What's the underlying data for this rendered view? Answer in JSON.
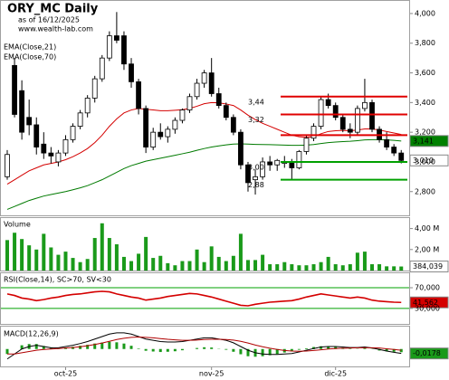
{
  "chart_data": [
    {
      "type": "candlestick",
      "title": "ORY_MC Daily",
      "subtitle": "as of 16/12/2025",
      "source": "www.wealth-lab.com",
      "open": [
        2900,
        3650,
        3480,
        3300,
        3250,
        3120,
        3060,
        3000,
        3060,
        3150,
        3240,
        3330,
        3430,
        3560,
        3700,
        3850,
        3850,
        3660,
        3540,
        3360,
        3100,
        3200,
        3170,
        3220,
        3280,
        3350,
        3440,
        3530,
        3600,
        3460,
        3380,
        3300,
        3200,
        2980,
        2880,
        2900,
        3000,
        2980,
        2990,
        3000,
        2960,
        3070,
        3160,
        3240,
        3420,
        3380,
        3300,
        3220,
        3200,
        3360,
        3400,
        3220,
        3150,
        3100,
        3060
      ],
      "high": [
        3080,
        3700,
        3550,
        3420,
        3300,
        3200,
        3100,
        3080,
        3180,
        3260,
        3350,
        3450,
        3580,
        3720,
        3880,
        4010,
        3880,
        3700,
        3560,
        3380,
        3230,
        3260,
        3240,
        3300,
        3360,
        3460,
        3560,
        3620,
        3700,
        3500,
        3400,
        3320,
        3220,
        3000,
        2950,
        3030,
        3040,
        3020,
        3040,
        3020,
        3080,
        3180,
        3260,
        3440,
        3460,
        3400,
        3320,
        3260,
        3380,
        3560,
        3420,
        3240,
        3200,
        3120,
        3080
      ],
      "low": [
        2880,
        3300,
        3150,
        3180,
        3050,
        3020,
        2990,
        2970,
        3040,
        3130,
        3220,
        3300,
        3400,
        3540,
        3680,
        3800,
        3620,
        3500,
        3320,
        3060,
        3080,
        3150,
        3130,
        3190,
        3260,
        3330,
        3420,
        3500,
        3440,
        3360,
        3280,
        3180,
        2950,
        2800,
        2780,
        2880,
        2940,
        2940,
        2960,
        2880,
        2950,
        3050,
        3140,
        3220,
        3360,
        3280,
        3200,
        3160,
        3180,
        3340,
        3200,
        3130,
        3080,
        3040,
        2990
      ],
      "close": [
        3050,
        3320,
        3200,
        3250,
        3100,
        3060,
        3040,
        3060,
        3150,
        3240,
        3330,
        3430,
        3560,
        3700,
        3850,
        3820,
        3660,
        3540,
        3360,
        3100,
        3200,
        3170,
        3220,
        3280,
        3350,
        3440,
        3530,
        3600,
        3460,
        3380,
        3300,
        3200,
        2980,
        2860,
        2900,
        3000,
        2980,
        3010,
        3000,
        2960,
        3070,
        3160,
        3240,
        3420,
        3380,
        3300,
        3220,
        3200,
        3360,
        3400,
        3220,
        3150,
        3100,
        3060,
        3010
      ],
      "series": [
        {
          "name": "EMA(Close,21)",
          "color": "#d40000",
          "values": [
            2850,
            2880,
            2910,
            2940,
            2960,
            2980,
            2990,
            3000,
            3015,
            3035,
            3060,
            3090,
            3130,
            3180,
            3240,
            3290,
            3330,
            3350,
            3360,
            3355,
            3350,
            3345,
            3345,
            3348,
            3352,
            3360,
            3375,
            3392,
            3400,
            3398,
            3390,
            3380,
            3350,
            3315,
            3285,
            3260,
            3240,
            3220,
            3200,
            3180,
            3170,
            3165,
            3170,
            3190,
            3205,
            3210,
            3212,
            3210,
            3215,
            3222,
            3222,
            3215,
            3205,
            3195,
            3185
          ]
        },
        {
          "name": "EMA(Close,70)",
          "color": "#007a00",
          "values": [
            2680,
            2700,
            2720,
            2740,
            2755,
            2770,
            2780,
            2790,
            2800,
            2812,
            2825,
            2840,
            2860,
            2880,
            2905,
            2930,
            2955,
            2975,
            2990,
            3005,
            3015,
            3025,
            3035,
            3045,
            3055,
            3065,
            3078,
            3090,
            3100,
            3108,
            3115,
            3120,
            3122,
            3120,
            3118,
            3117,
            3116,
            3115,
            3113,
            3112,
            3112,
            3113,
            3117,
            3124,
            3130,
            3134,
            3137,
            3139,
            3143,
            3148,
            3150,
            3150,
            3148,
            3145,
            3141
          ]
        }
      ],
      "ylim": [
        2640,
        4085
      ],
      "yticks": [
        {
          "value": 2800,
          "label": "2,800"
        },
        {
          "value": 3000,
          "label": "3,000"
        },
        {
          "value": 3200,
          "label": "3,200"
        },
        {
          "value": 3400,
          "label": "3,400"
        },
        {
          "value": 3600,
          "label": "3,600"
        },
        {
          "value": 3800,
          "label": "3,800"
        },
        {
          "value": 4000,
          "label": "4,000"
        }
      ],
      "levels": [
        {
          "value": 3440,
          "label": "3,44",
          "color": "#e00000"
        },
        {
          "value": 3320,
          "label": "3,32",
          "color": "#e00000"
        },
        {
          "value": 3180,
          "color": "#e00000"
        },
        {
          "value": 3000,
          "label": "3,00",
          "color": "#00a000"
        },
        {
          "value": 2880,
          "label": "2,88",
          "color": "#00a000"
        }
      ],
      "last_labels": [
        {
          "value": 3141,
          "label": "3,141",
          "color": "#008000"
        },
        {
          "value": 3010,
          "label": "3,010",
          "color": "#ffffff"
        }
      ]
    },
    {
      "type": "bar",
      "title": "Volume",
      "color": "#1a9a1a",
      "values": [
        2.9,
        3.6,
        3.0,
        2.4,
        2.0,
        3.5,
        2.2,
        1.5,
        1.8,
        1.2,
        0.8,
        1.1,
        3.1,
        4.5,
        3.1,
        2.5,
        1.3,
        0.9,
        1.6,
        3.2,
        1.2,
        1.4,
        0.7,
        0.5,
        0.9,
        0.9,
        2.0,
        0.8,
        2.3,
        1.3,
        0.9,
        1.4,
        3.5,
        1.0,
        1.0,
        1.5,
        0.6,
        0.6,
        0.8,
        0.6,
        0.5,
        0.5,
        0.6,
        0.8,
        1.3,
        0.6,
        0.5,
        0.6,
        1.7,
        1.8,
        0.6,
        0.6,
        0.4,
        0.4,
        0.384039
      ],
      "ylim": [
        0,
        5
      ],
      "yticks": [
        {
          "value": 2,
          "label": "2,00 M"
        },
        {
          "value": 4,
          "label": "4,00 M"
        }
      ],
      "last_label": {
        "value": 0.384039,
        "label": "384,039"
      }
    },
    {
      "type": "line",
      "title": "RSI(Close,14), SC>70, SV<30",
      "color": "#d40000",
      "band_color": "#00a000",
      "values": [
        58,
        55,
        50,
        48,
        45,
        47,
        50,
        52,
        55,
        57,
        58,
        60,
        62,
        63,
        62,
        58,
        55,
        52,
        50,
        46,
        48,
        50,
        53,
        55,
        57,
        59,
        58,
        55,
        52,
        48,
        44,
        40,
        36,
        35,
        38,
        40,
        42,
        43,
        44,
        45,
        48,
        52,
        55,
        58,
        56,
        54,
        52,
        50,
        52,
        50,
        46,
        44,
        43,
        42,
        41.562
      ],
      "ylim": [
        0,
        98
      ],
      "yticks": [
        {
          "value": 30,
          "label": "30,000"
        },
        {
          "value": 70,
          "label": "70,000"
        }
      ],
      "last_label": {
        "value": 41.562,
        "label": "41,562"
      }
    },
    {
      "type": "macd",
      "title": "MACD(12,26,9)",
      "series": [
        {
          "color": "#000000",
          "values": [
            -0.04,
            -0.02,
            0,
            0.01,
            0.015,
            0.01,
            0.005,
            0.005,
            0.01,
            0.015,
            0.022,
            0.03,
            0.04,
            0.05,
            0.06,
            0.065,
            0.065,
            0.06,
            0.05,
            0.04,
            0.035,
            0.03,
            0.028,
            0.028,
            0.03,
            0.035,
            0.04,
            0.045,
            0.045,
            0.04,
            0.035,
            0.025,
            0.01,
            -0.005,
            -0.015,
            -0.02,
            -0.022,
            -0.022,
            -0.02,
            -0.018,
            -0.012,
            -0.005,
            0.002,
            0.008,
            0.01,
            0.01,
            0.008,
            0.006,
            0.006,
            0.008,
            0.004,
            -0.002,
            -0.008,
            -0.013,
            -0.0178
          ]
        },
        {
          "color": "#b00000",
          "values": [
            -0.02,
            -0.02,
            -0.015,
            -0.01,
            -0.005,
            -0.002,
            0,
            0.002,
            0.004,
            0.006,
            0.009,
            0.013,
            0.018,
            0.024,
            0.031,
            0.038,
            0.043,
            0.047,
            0.048,
            0.047,
            0.045,
            0.042,
            0.039,
            0.037,
            0.035,
            0.035,
            0.036,
            0.038,
            0.039,
            0.039,
            0.038,
            0.036,
            0.031,
            0.024,
            0.016,
            0.009,
            0.003,
            -0.002,
            -0.006,
            -0.008,
            -0.009,
            -0.008,
            -0.006,
            -0.003,
            0,
            0.002,
            0.003,
            0.004,
            0.005,
            0.005,
            0.005,
            0.004,
            0.001,
            -0.002,
            -0.005
          ]
        }
      ],
      "histogram": {
        "color": "#1a9a1a",
        "values": [
          -0.02,
          0,
          0.015,
          0.02,
          0.02,
          0.012,
          0.005,
          0.003,
          0.006,
          0.009,
          0.013,
          0.017,
          0.022,
          0.026,
          0.029,
          0.027,
          0.022,
          0.013,
          0.002,
          -0.007,
          -0.01,
          -0.012,
          -0.011,
          -0.009,
          -0.005,
          0,
          0.004,
          0.007,
          0.006,
          0.001,
          -0.003,
          -0.011,
          -0.021,
          -0.029,
          -0.031,
          -0.029,
          -0.025,
          -0.02,
          -0.014,
          -0.01,
          -0.003,
          0.003,
          0.008,
          0.011,
          0.01,
          0.008,
          0.005,
          0.002,
          0.001,
          0.003,
          -0.001,
          -0.006,
          -0.009,
          -0.011,
          -0.0128
        ]
      },
      "ylim": [
        -0.07,
        0.09
      ],
      "last_label": {
        "value": -0.0178,
        "label": "-0,0178"
      },
      "xticks": [
        {
          "value": 8,
          "label": "oct-25"
        },
        {
          "value": 28,
          "label": "nov-25"
        },
        {
          "value": 45,
          "label": "dic-25"
        }
      ]
    }
  ]
}
